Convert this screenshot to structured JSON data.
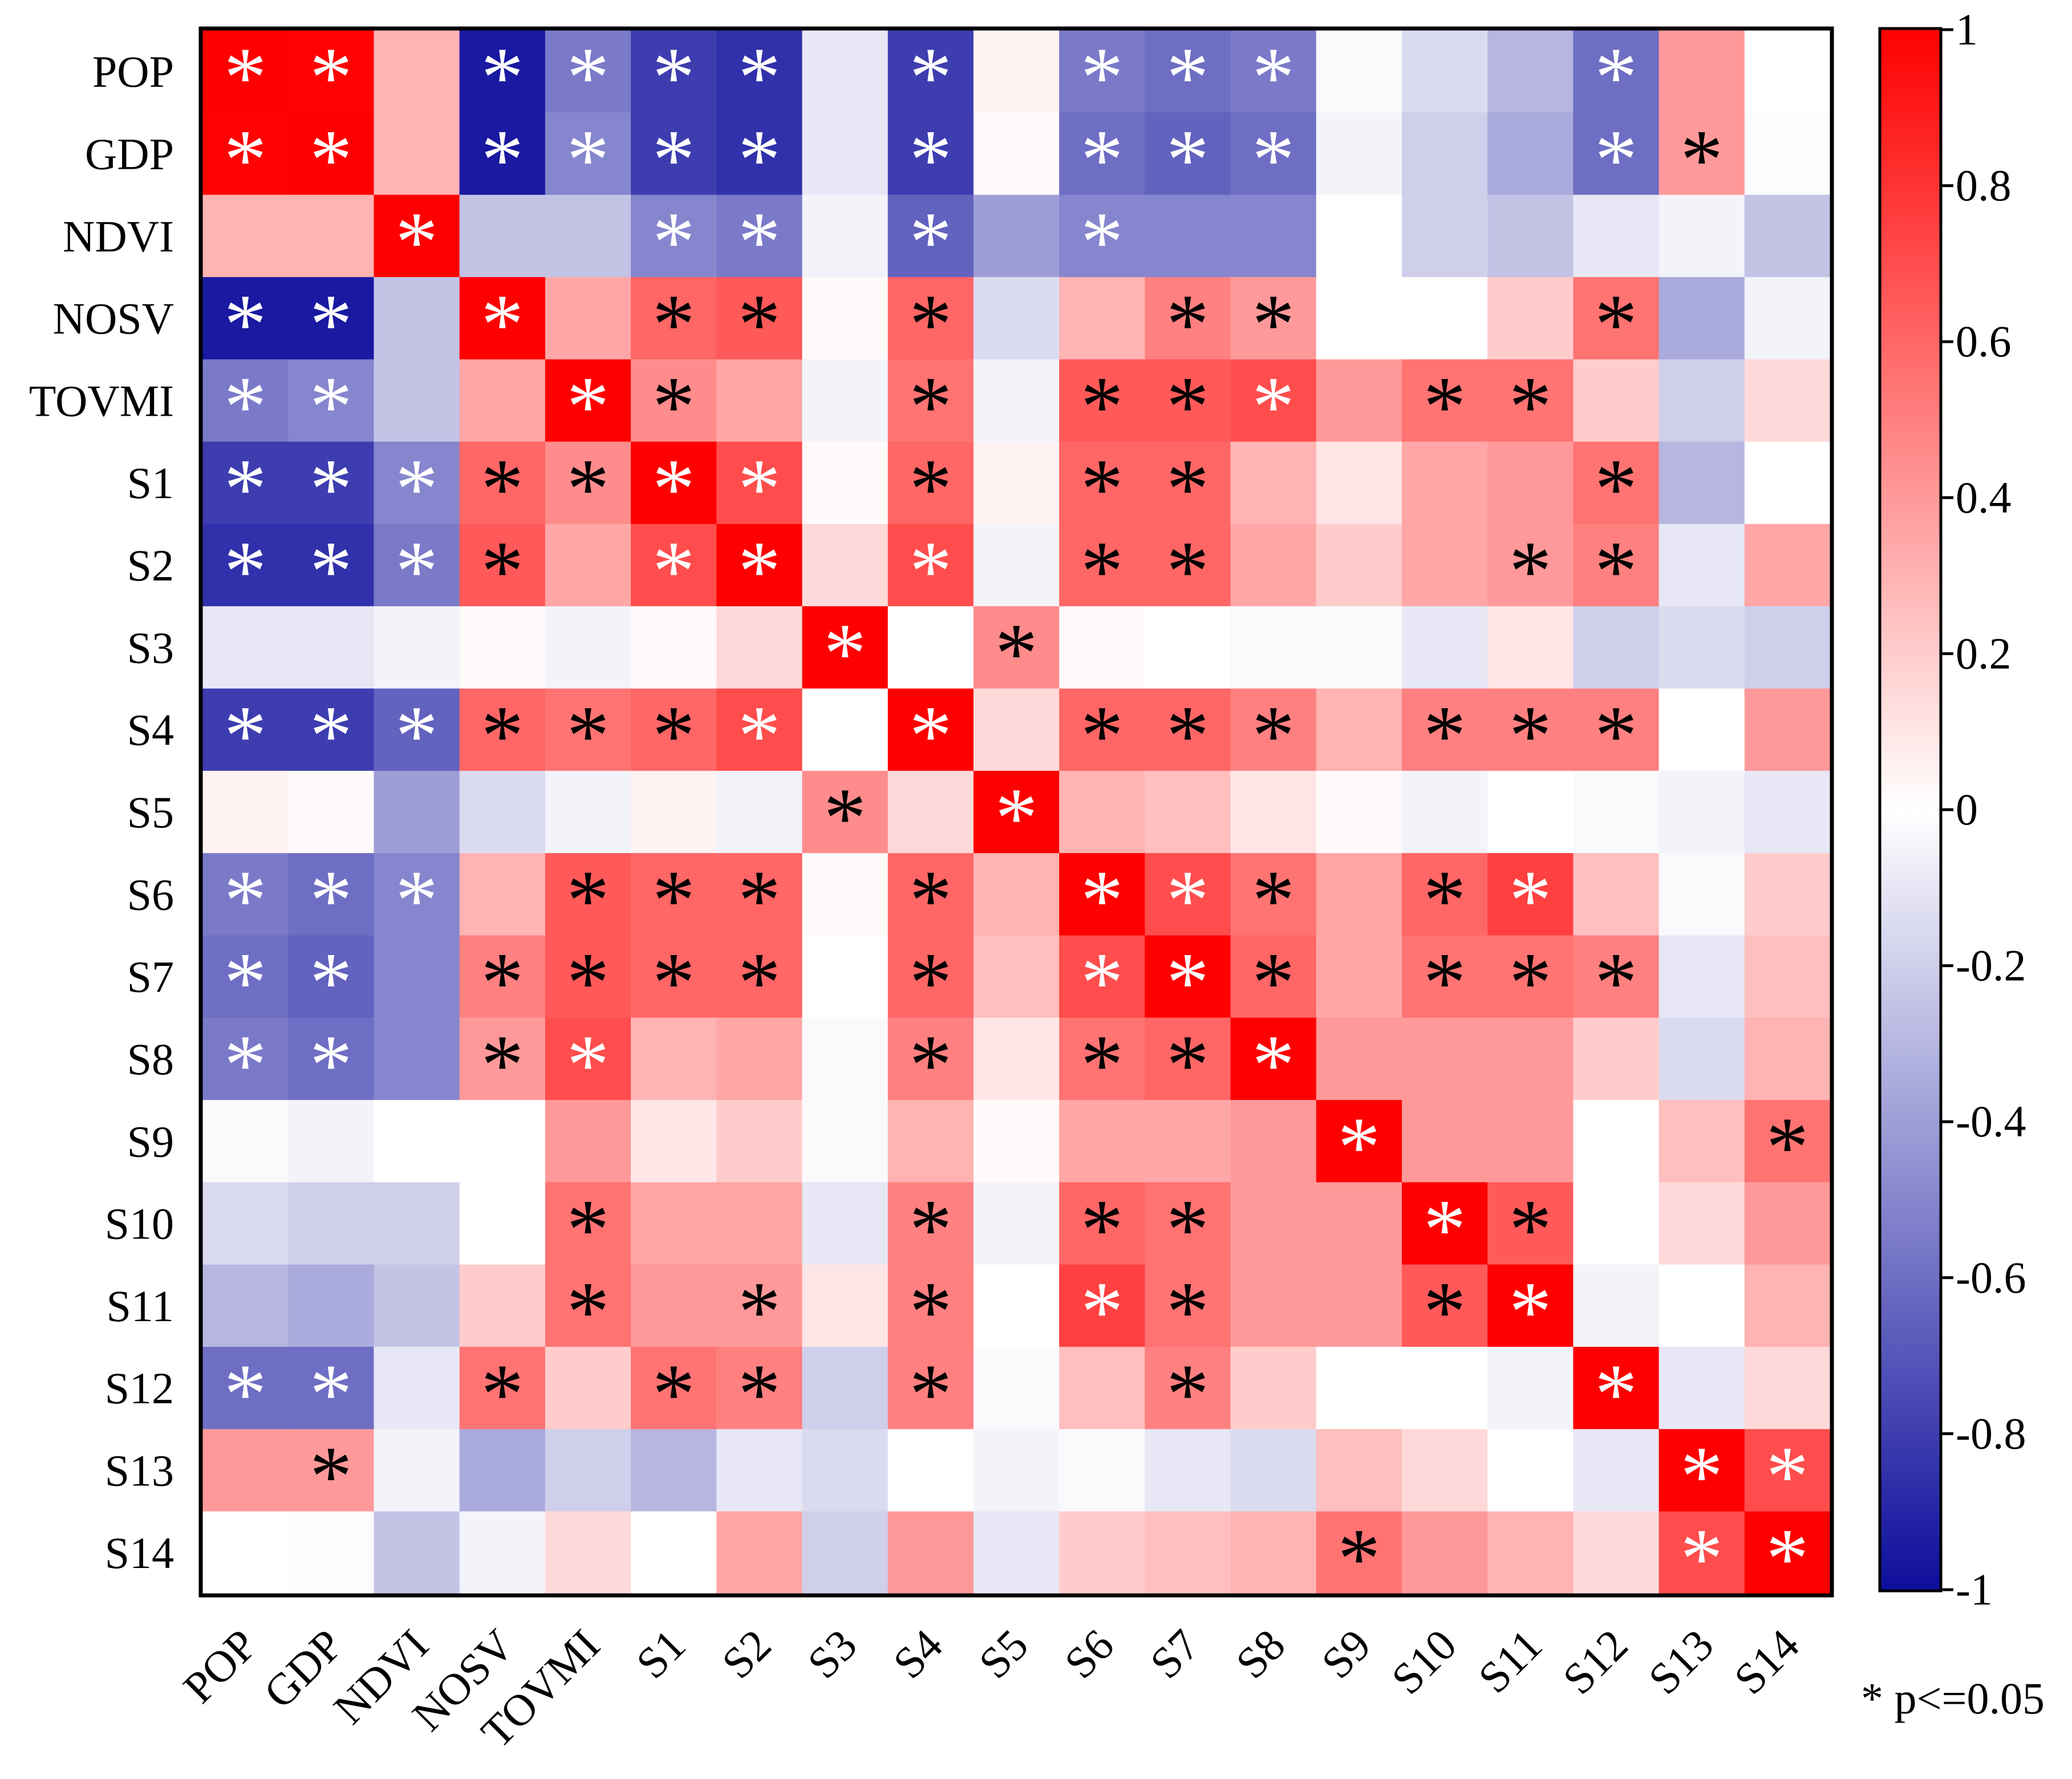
{
  "chart_data": {
    "type": "heatmap",
    "title": "",
    "variables": [
      "POP",
      "GDP",
      "NDVI",
      "NOSV",
      "TOVMI",
      "S1",
      "S2",
      "S3",
      "S4",
      "S5",
      "S6",
      "S7",
      "S8",
      "S9",
      "S10",
      "S11",
      "S12",
      "S13",
      "S14"
    ],
    "value_range": [
      -1,
      1
    ],
    "colorbar": {
      "ticks": [
        "1",
        "0.8",
        "0.6",
        "0.4",
        "0.2",
        "0",
        "-0.2",
        "-0.4",
        "-0.6",
        "-0.8",
        "-1"
      ],
      "colors": {
        "neg": "#0d0d9c",
        "zero": "#ffffff",
        "pos": "#ff0000"
      }
    },
    "significance_label": "* p<=0.05",
    "significance_symbol": "*",
    "values": [
      [
        1.0,
        0.99,
        0.3,
        -0.95,
        -0.55,
        -0.8,
        -0.85,
        -0.1,
        -0.8,
        0.05,
        -0.55,
        -0.6,
        -0.55,
        -0.02,
        -0.15,
        -0.3,
        -0.6,
        0.4,
        0.0
      ],
      [
        0.99,
        1.0,
        0.3,
        -0.95,
        -0.5,
        -0.8,
        -0.85,
        -0.1,
        -0.8,
        0.02,
        -0.6,
        -0.65,
        -0.6,
        -0.05,
        -0.2,
        -0.35,
        -0.6,
        0.4,
        -0.01
      ],
      [
        0.3,
        0.3,
        1.0,
        -0.25,
        -0.25,
        -0.5,
        -0.55,
        -0.05,
        -0.65,
        -0.4,
        -0.5,
        -0.5,
        -0.5,
        0.0,
        -0.2,
        -0.25,
        -0.1,
        -0.05,
        -0.25
      ],
      [
        -0.95,
        -0.95,
        -0.25,
        1.0,
        0.35,
        0.6,
        0.65,
        0.02,
        0.6,
        -0.15,
        0.3,
        0.5,
        0.4,
        0.0,
        0.0,
        0.2,
        0.55,
        -0.35,
        -0.05
      ],
      [
        -0.55,
        -0.5,
        -0.25,
        0.35,
        1.0,
        0.45,
        0.35,
        -0.05,
        0.55,
        -0.05,
        0.65,
        0.65,
        0.7,
        0.4,
        0.55,
        0.55,
        0.2,
        -0.2,
        0.15
      ],
      [
        -0.8,
        -0.8,
        -0.5,
        0.6,
        0.45,
        1.0,
        0.7,
        0.02,
        0.6,
        0.05,
        0.6,
        0.6,
        0.3,
        0.1,
        0.35,
        0.4,
        0.55,
        -0.3,
        0.0
      ],
      [
        -0.85,
        -0.85,
        -0.55,
        0.65,
        0.35,
        0.7,
        1.0,
        0.15,
        0.7,
        -0.05,
        0.6,
        0.6,
        0.35,
        0.2,
        0.35,
        0.4,
        0.5,
        -0.1,
        0.35
      ],
      [
        -0.1,
        -0.1,
        -0.05,
        0.02,
        -0.05,
        0.02,
        0.15,
        1.0,
        0.0,
        0.45,
        0.02,
        0.0,
        -0.02,
        -0.02,
        -0.1,
        0.1,
        -0.2,
        -0.15,
        -0.2
      ],
      [
        -0.8,
        -0.8,
        -0.65,
        0.6,
        0.55,
        0.6,
        0.7,
        0.0,
        1.0,
        0.15,
        0.6,
        0.6,
        0.5,
        0.3,
        0.5,
        0.5,
        0.5,
        0.0,
        0.4
      ],
      [
        0.05,
        0.02,
        -0.4,
        -0.15,
        -0.05,
        0.05,
        -0.05,
        0.45,
        0.15,
        1.0,
        0.3,
        0.25,
        0.1,
        0.02,
        -0.05,
        0.0,
        -0.02,
        -0.05,
        -0.1
      ],
      [
        -0.55,
        -0.6,
        -0.5,
        0.3,
        0.65,
        0.6,
        0.6,
        0.02,
        0.6,
        0.3,
        1.0,
        0.7,
        0.55,
        0.35,
        0.6,
        0.75,
        0.25,
        -0.02,
        0.2
      ],
      [
        -0.6,
        -0.65,
        -0.5,
        0.5,
        0.65,
        0.6,
        0.6,
        0.0,
        0.6,
        0.25,
        0.7,
        1.0,
        0.6,
        0.35,
        0.55,
        0.55,
        0.5,
        -0.1,
        0.25
      ],
      [
        -0.55,
        -0.6,
        -0.5,
        0.4,
        0.7,
        0.3,
        0.35,
        -0.02,
        0.5,
        0.1,
        0.55,
        0.6,
        1.0,
        0.4,
        0.4,
        0.4,
        0.2,
        -0.15,
        0.3
      ],
      [
        -0.02,
        -0.05,
        0.0,
        0.0,
        0.4,
        0.1,
        0.2,
        -0.02,
        0.3,
        0.02,
        0.35,
        0.35,
        0.4,
        1.0,
        0.4,
        0.4,
        0.0,
        0.25,
        0.55
      ],
      [
        -0.15,
        -0.2,
        -0.2,
        0.0,
        0.55,
        0.35,
        0.35,
        -0.1,
        0.5,
        -0.05,
        0.6,
        0.55,
        0.4,
        0.4,
        1.0,
        0.65,
        0.0,
        0.15,
        0.4
      ],
      [
        -0.3,
        -0.35,
        -0.25,
        0.2,
        0.55,
        0.4,
        0.4,
        0.1,
        0.5,
        0.0,
        0.75,
        0.55,
        0.4,
        0.4,
        0.65,
        1.0,
        -0.05,
        0.0,
        0.3
      ],
      [
        -0.6,
        -0.6,
        -0.1,
        0.55,
        0.2,
        0.55,
        0.5,
        -0.2,
        0.5,
        -0.02,
        0.25,
        0.5,
        0.2,
        0.0,
        0.0,
        -0.05,
        1.0,
        -0.1,
        0.15
      ],
      [
        0.4,
        0.4,
        -0.05,
        -0.35,
        -0.2,
        -0.3,
        -0.1,
        -0.15,
        0.0,
        -0.05,
        -0.02,
        -0.1,
        -0.15,
        0.25,
        0.15,
        0.0,
        -0.1,
        1.0,
        0.7
      ],
      [
        0.0,
        -0.01,
        -0.25,
        -0.05,
        0.15,
        0.0,
        0.35,
        -0.2,
        0.4,
        -0.1,
        0.2,
        0.25,
        0.3,
        0.55,
        0.4,
        0.3,
        0.15,
        0.7,
        1.0
      ]
    ],
    "significant": [
      [
        1,
        1,
        0,
        1,
        1,
        1,
        1,
        0,
        1,
        0,
        1,
        1,
        1,
        0,
        0,
        0,
        1,
        0,
        0
      ],
      [
        1,
        1,
        0,
        1,
        1,
        1,
        1,
        0,
        1,
        0,
        1,
        1,
        1,
        0,
        0,
        0,
        1,
        1,
        0
      ],
      [
        0,
        0,
        1,
        0,
        0,
        1,
        1,
        0,
        1,
        0,
        1,
        0,
        0,
        0,
        0,
        0,
        0,
        0,
        0
      ],
      [
        1,
        1,
        0,
        1,
        0,
        1,
        1,
        0,
        1,
        0,
        0,
        1,
        1,
        0,
        0,
        0,
        1,
        0,
        0
      ],
      [
        1,
        1,
        0,
        0,
        1,
        1,
        0,
        0,
        1,
        0,
        1,
        1,
        1,
        0,
        1,
        1,
        0,
        0,
        0
      ],
      [
        1,
        1,
        1,
        1,
        1,
        1,
        1,
        0,
        1,
        0,
        1,
        1,
        0,
        0,
        0,
        0,
        1,
        0,
        0
      ],
      [
        1,
        1,
        1,
        1,
        0,
        1,
        1,
        0,
        1,
        0,
        1,
        1,
        0,
        0,
        0,
        1,
        1,
        0,
        0
      ],
      [
        0,
        0,
        0,
        0,
        0,
        0,
        0,
        1,
        0,
        1,
        0,
        0,
        0,
        0,
        0,
        0,
        0,
        0,
        0
      ],
      [
        1,
        1,
        1,
        1,
        1,
        1,
        1,
        0,
        1,
        0,
        1,
        1,
        1,
        0,
        1,
        1,
        1,
        0,
        0
      ],
      [
        0,
        0,
        0,
        0,
        0,
        0,
        0,
        1,
        0,
        1,
        0,
        0,
        0,
        0,
        0,
        0,
        0,
        0,
        0
      ],
      [
        1,
        1,
        1,
        0,
        1,
        1,
        1,
        0,
        1,
        0,
        1,
        1,
        1,
        0,
        1,
        1,
        0,
        0,
        0
      ],
      [
        1,
        1,
        0,
        1,
        1,
        1,
        1,
        0,
        1,
        0,
        1,
        1,
        1,
        0,
        1,
        1,
        1,
        0,
        0
      ],
      [
        1,
        1,
        0,
        1,
        1,
        0,
        0,
        0,
        1,
        0,
        1,
        1,
        1,
        0,
        0,
        0,
        0,
        0,
        0
      ],
      [
        0,
        0,
        0,
        0,
        0,
        0,
        0,
        0,
        0,
        0,
        0,
        0,
        0,
        1,
        0,
        0,
        0,
        0,
        1
      ],
      [
        0,
        0,
        0,
        0,
        1,
        0,
        0,
        0,
        1,
        0,
        1,
        1,
        0,
        0,
        1,
        1,
        0,
        0,
        0
      ],
      [
        0,
        0,
        0,
        0,
        1,
        0,
        1,
        0,
        1,
        0,
        1,
        1,
        0,
        0,
        1,
        1,
        0,
        0,
        0
      ],
      [
        1,
        1,
        0,
        1,
        0,
        1,
        1,
        0,
        1,
        0,
        0,
        1,
        0,
        0,
        0,
        0,
        1,
        0,
        0
      ],
      [
        0,
        1,
        0,
        0,
        0,
        0,
        0,
        0,
        0,
        0,
        0,
        0,
        0,
        0,
        0,
        0,
        0,
        1,
        1
      ],
      [
        0,
        0,
        0,
        0,
        0,
        0,
        0,
        0,
        0,
        0,
        0,
        0,
        0,
        1,
        0,
        0,
        0,
        1,
        1
      ]
    ]
  }
}
